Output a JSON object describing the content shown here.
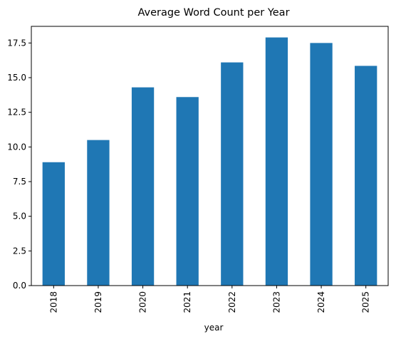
{
  "chart_data": {
    "type": "bar",
    "title": "Average Word Count per Year",
    "xlabel": "year",
    "ylabel": "",
    "categories": [
      "2018",
      "2019",
      "2020",
      "2021",
      "2022",
      "2023",
      "2024",
      "2025"
    ],
    "values": [
      8.9,
      10.5,
      14.3,
      13.6,
      16.1,
      17.9,
      17.5,
      15.85
    ],
    "ylim": [
      0,
      18.7
    ],
    "yticks": [
      "0.0",
      "2.5",
      "5.0",
      "7.5",
      "10.0",
      "12.5",
      "15.0",
      "17.5"
    ],
    "x_tick_rotation": "vertical",
    "grid": false,
    "legend": "none",
    "bar_color": "#1f77b4"
  }
}
